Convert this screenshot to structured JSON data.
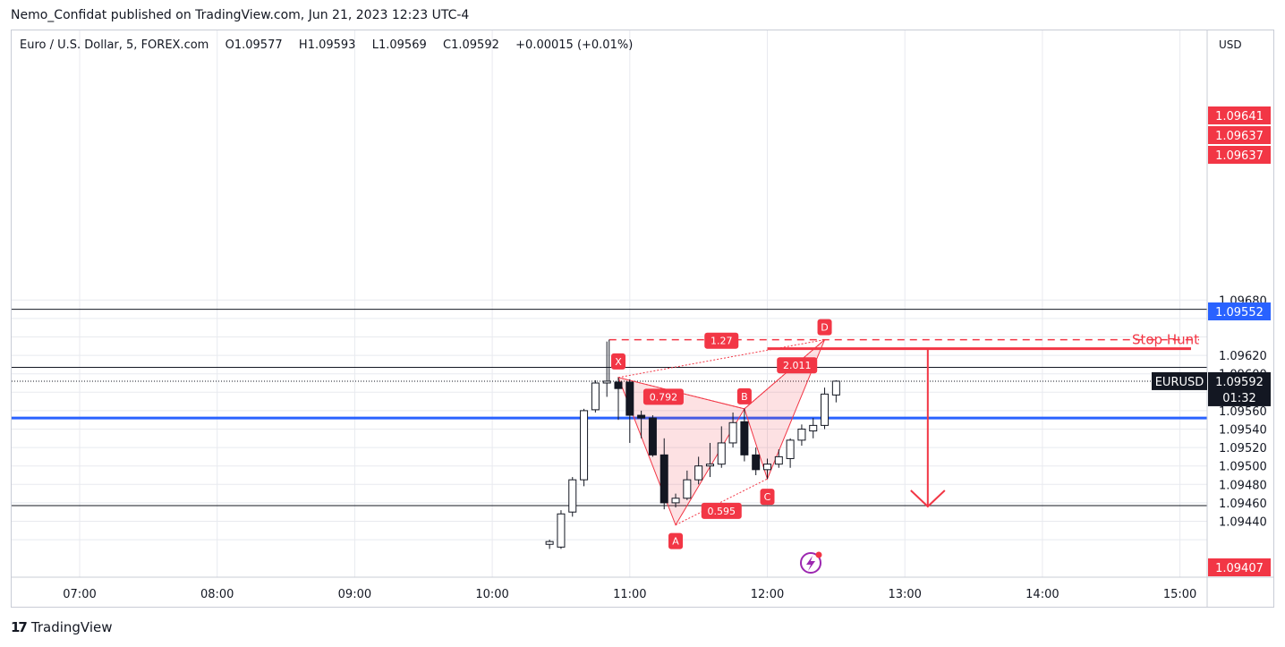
{
  "publisher_line": "Nemo_Confidat published on TradingView.com, Jun 21, 2023 12:23 UTC-4",
  "brand": "TradingView",
  "legend": {
    "symbol": "Euro / U.S. Dollar, 5, FOREX.com",
    "o_label": "O",
    "o_value": "1.09577",
    "h_label": "H",
    "h_value": "1.09593",
    "l_label": "L",
    "l_value": "1.09569",
    "c_label": "C",
    "c_value": "1.09592",
    "change": "+0.00015 (+0.01%)"
  },
  "currency": "USD",
  "colors": {
    "red": "#f23645",
    "blue": "#2962ff",
    "grid": "#d1d4dc",
    "bg": "#ffffff",
    "pattern_fill": "rgba(242,54,69,0.15)"
  },
  "chart_data": {
    "type": "candlestick",
    "timeframe": "5",
    "x_ticks": [
      "07:00",
      "08:00",
      "09:00",
      "10:00",
      "11:00",
      "12:00",
      "13:00",
      "14:00",
      "15:00"
    ],
    "y_ticks": [
      "1.09440",
      "1.09460",
      "1.09480",
      "1.09500",
      "1.09520",
      "1.09540",
      "1.09560",
      "1.09600",
      "1.09620",
      "1.09680"
    ],
    "y_range": [
      1.09415,
      1.09695
    ],
    "candles": [
      {
        "t": "10:25",
        "o": 1.09415,
        "h": 1.0942,
        "l": 1.0941,
        "c": 1.09418
      },
      {
        "t": "10:30",
        "o": 1.09412,
        "h": 1.09452,
        "l": 1.0941,
        "c": 1.09448
      },
      {
        "t": "10:35",
        "o": 1.0945,
        "h": 1.09488,
        "l": 1.09445,
        "c": 1.09485
      },
      {
        "t": "10:40",
        "o": 1.09485,
        "h": 1.09562,
        "l": 1.09478,
        "c": 1.0956
      },
      {
        "t": "10:45",
        "o": 1.09561,
        "h": 1.09593,
        "l": 1.09558,
        "c": 1.0959
      },
      {
        "t": "10:50",
        "o": 1.0959,
        "h": 1.09635,
        "l": 1.09575,
        "c": 1.09592
      },
      {
        "t": "10:55",
        "o": 1.09591,
        "h": 1.09596,
        "l": 1.0955,
        "c": 1.09584
      },
      {
        "t": "11:00",
        "o": 1.09591,
        "h": 1.09594,
        "l": 1.09525,
        "c": 1.09555
      },
      {
        "t": "11:05",
        "o": 1.09555,
        "h": 1.0956,
        "l": 1.0953,
        "c": 1.09552
      },
      {
        "t": "11:10",
        "o": 1.09552,
        "h": 1.09555,
        "l": 1.0951,
        "c": 1.09512
      },
      {
        "t": "11:15",
        "o": 1.09512,
        "h": 1.0953,
        "l": 1.09453,
        "c": 1.0946
      },
      {
        "t": "11:20",
        "o": 1.0946,
        "h": 1.0947,
        "l": 1.09455,
        "c": 1.09465
      },
      {
        "t": "11:25",
        "o": 1.09465,
        "h": 1.09495,
        "l": 1.09463,
        "c": 1.09485
      },
      {
        "t": "11:30",
        "o": 1.09485,
        "h": 1.0951,
        "l": 1.0948,
        "c": 1.095
      },
      {
        "t": "11:35",
        "o": 1.095,
        "h": 1.09525,
        "l": 1.09488,
        "c": 1.09502
      },
      {
        "t": "11:40",
        "o": 1.09502,
        "h": 1.09543,
        "l": 1.09498,
        "c": 1.09525
      },
      {
        "t": "11:45",
        "o": 1.09525,
        "h": 1.09558,
        "l": 1.0952,
        "c": 1.09547
      },
      {
        "t": "11:50",
        "o": 1.09548,
        "h": 1.09562,
        "l": 1.09505,
        "c": 1.09512
      },
      {
        "t": "11:55",
        "o": 1.09512,
        "h": 1.0952,
        "l": 1.0949,
        "c": 1.09496
      },
      {
        "t": "12:00",
        "o": 1.09496,
        "h": 1.09508,
        "l": 1.09486,
        "c": 1.09502
      },
      {
        "t": "12:05",
        "o": 1.09502,
        "h": 1.09518,
        "l": 1.09498,
        "c": 1.0951
      },
      {
        "t": "12:10",
        "o": 1.09508,
        "h": 1.0953,
        "l": 1.09498,
        "c": 1.09528
      },
      {
        "t": "12:15",
        "o": 1.09528,
        "h": 1.09545,
        "l": 1.09522,
        "c": 1.0954
      },
      {
        "t": "12:20",
        "o": 1.09538,
        "h": 1.09552,
        "l": 1.0953,
        "c": 1.09544
      },
      {
        "t": "12:25",
        "o": 1.09544,
        "h": 1.09585,
        "l": 1.0954,
        "c": 1.09578
      },
      {
        "t": "12:30",
        "o": 1.09577,
        "h": 1.09593,
        "l": 1.09569,
        "c": 1.09592
      }
    ],
    "horizontal_lines": [
      {
        "price": 1.0967,
        "color": "#131722"
      },
      {
        "price": 1.09607,
        "color": "#131722"
      },
      {
        "price": 1.09552,
        "color": "#2962ff"
      },
      {
        "price": 1.09457,
        "color": "#131722"
      }
    ],
    "stop_hunt_level": 1.09637,
    "pattern_points": [
      {
        "label": "X",
        "t": "10:55",
        "price": 1.09596
      },
      {
        "label": "A",
        "t": "11:20",
        "price": 1.09436
      },
      {
        "label": "B",
        "t": "11:50",
        "price": 1.09562
      },
      {
        "label": "C",
        "t": "12:00",
        "price": 1.09486
      },
      {
        "label": "D",
        "t": "12:25",
        "price": 1.09637
      }
    ],
    "ratios": [
      {
        "label": "1.27"
      },
      {
        "label": "0.792"
      },
      {
        "label": "2.011"
      },
      {
        "label": "0.595"
      }
    ],
    "annotation": "Stop Hunt",
    "price_tags": [
      {
        "label": "1.09641",
        "price": 1.09641,
        "color": "#f23645"
      },
      {
        "label": "1.09637",
        "price": 1.09637,
        "color": "#f23645"
      },
      {
        "label": "1.09637",
        "price": 1.09637,
        "color": "#f23645"
      },
      {
        "label": "1.09552",
        "price": 1.09552,
        "color": "#2962ff"
      },
      {
        "label": "1.09407",
        "price": 1.09407,
        "color": "#f23645"
      }
    ],
    "current_price": {
      "symbol": "EURUSD",
      "price": "1.09592",
      "countdown": "01:32"
    }
  }
}
